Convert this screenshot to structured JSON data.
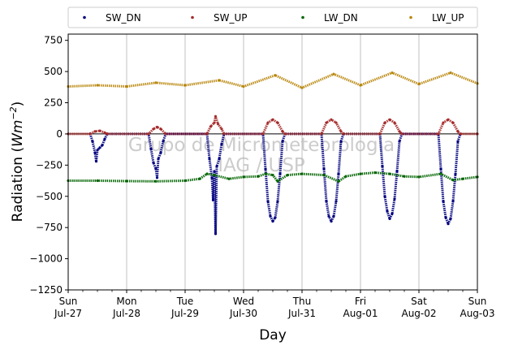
{
  "chart_data": {
    "type": "scatter",
    "ylabel_main": "Radiation (",
    "ylabel_unit_base": "Wm",
    "ylabel_unit_exp": "−2",
    "ylabel_close": ")",
    "xlabel": "Day",
    "ylim": [
      -1250,
      800
    ],
    "xlim": [
      "2014-07-27",
      "2014-08-03"
    ],
    "yticks": [
      {
        "value": 750,
        "label": "750"
      },
      {
        "value": 500,
        "label": "500"
      },
      {
        "value": 250,
        "label": "250"
      },
      {
        "value": 0,
        "label": "0"
      },
      {
        "value": -250,
        "label": "−250"
      },
      {
        "value": -500,
        "label": "−500"
      },
      {
        "value": -750,
        "label": "−750"
      },
      {
        "value": -1000,
        "label": "−1000"
      },
      {
        "value": -1250,
        "label": "−1250"
      }
    ],
    "xticks": [
      {
        "date": "2014-07-27",
        "day": "Sun",
        "date_label": "Jul-27"
      },
      {
        "date": "2014-07-28",
        "day": "Mon",
        "date_label": "Jul-28"
      },
      {
        "date": "2014-07-29",
        "day": "Tue",
        "date_label": "Jul-29"
      },
      {
        "date": "2014-07-30",
        "day": "Wed",
        "date_label": "Jul-30"
      },
      {
        "date": "2014-07-31",
        "day": "Thu",
        "date_label": "Jul-31"
      },
      {
        "date": "2014-08-01",
        "day": "Fri",
        "date_label": "Aug-01"
      },
      {
        "date": "2014-08-02",
        "day": "Sat",
        "date_label": "Aug-02"
      },
      {
        "date": "2014-08-03",
        "day": "Sun",
        "date_label": "Aug-03"
      }
    ],
    "grid": "vertical",
    "legend_placement": "top",
    "watermark": [
      "Grupo de Micrometeorologia",
      "IAG / USP"
    ],
    "series": [
      {
        "name": "SW_DN",
        "color": "#00007f",
        "points": [
          [
            "2014-07-27T09:00",
            0
          ],
          [
            "2014-07-27T10:00",
            -60
          ],
          [
            "2014-07-27T11:00",
            -150
          ],
          [
            "2014-07-27T11:30",
            -220
          ],
          [
            "2014-07-27T12:00",
            -130
          ],
          [
            "2014-07-27T13:00",
            -110
          ],
          [
            "2014-07-27T14:00",
            -90
          ],
          [
            "2014-07-27T15:00",
            -40
          ],
          [
            "2014-07-27T16:00",
            0
          ],
          [
            "2014-07-28T09:00",
            0
          ],
          [
            "2014-07-28T10:00",
            -120
          ],
          [
            "2014-07-28T11:00",
            -230
          ],
          [
            "2014-07-28T12:00",
            -280
          ],
          [
            "2014-07-28T12:30",
            -350
          ],
          [
            "2014-07-28T13:00",
            -200
          ],
          [
            "2014-07-28T14:00",
            -150
          ],
          [
            "2014-07-28T15:00",
            -60
          ],
          [
            "2014-07-28T16:00",
            0
          ],
          [
            "2014-07-29T09:00",
            0
          ],
          [
            "2014-07-29T10:00",
            -200
          ],
          [
            "2014-07-29T11:00",
            -350
          ],
          [
            "2014-07-29T11:30",
            -530
          ],
          [
            "2014-07-29T12:00",
            -300
          ],
          [
            "2014-07-29T12:30",
            -800
          ],
          [
            "2014-07-29T13:00",
            -260
          ],
          [
            "2014-07-29T14:00",
            -200
          ],
          [
            "2014-07-29T15:00",
            -80
          ],
          [
            "2014-07-29T16:00",
            0
          ],
          [
            "2014-07-30T08:00",
            0
          ],
          [
            "2014-07-30T09:00",
            -280
          ],
          [
            "2014-07-30T10:00",
            -540
          ],
          [
            "2014-07-30T11:00",
            -660
          ],
          [
            "2014-07-30T12:00",
            -700
          ],
          [
            "2014-07-30T13:00",
            -670
          ],
          [
            "2014-07-30T14:00",
            -540
          ],
          [
            "2014-07-30T15:00",
            -320
          ],
          [
            "2014-07-30T16:00",
            -60
          ],
          [
            "2014-07-30T17:00",
            0
          ],
          [
            "2014-07-31T08:00",
            0
          ],
          [
            "2014-07-31T09:00",
            -280
          ],
          [
            "2014-07-31T10:00",
            -540
          ],
          [
            "2014-07-31T11:00",
            -660
          ],
          [
            "2014-07-31T12:00",
            -700
          ],
          [
            "2014-07-31T13:00",
            -660
          ],
          [
            "2014-07-31T14:00",
            -540
          ],
          [
            "2014-07-31T15:00",
            -320
          ],
          [
            "2014-07-31T16:00",
            -60
          ],
          [
            "2014-07-31T17:00",
            0
          ],
          [
            "2014-08-01T08:00",
            0
          ],
          [
            "2014-08-01T09:00",
            -260
          ],
          [
            "2014-08-01T10:00",
            -500
          ],
          [
            "2014-08-01T11:00",
            -620
          ],
          [
            "2014-08-01T12:00",
            -680
          ],
          [
            "2014-08-01T13:00",
            -640
          ],
          [
            "2014-08-01T14:00",
            -520
          ],
          [
            "2014-08-01T15:00",
            -300
          ],
          [
            "2014-08-01T16:00",
            -60
          ],
          [
            "2014-08-01T17:00",
            0
          ],
          [
            "2014-08-02T08:00",
            0
          ],
          [
            "2014-08-02T09:00",
            -280
          ],
          [
            "2014-08-02T10:00",
            -540
          ],
          [
            "2014-08-02T11:00",
            -670
          ],
          [
            "2014-08-02T12:00",
            -720
          ],
          [
            "2014-08-02T13:00",
            -680
          ],
          [
            "2014-08-02T14:00",
            -540
          ],
          [
            "2014-08-02T15:00",
            -320
          ],
          [
            "2014-08-02T16:00",
            -60
          ],
          [
            "2014-08-02T17:00",
            0
          ]
        ]
      },
      {
        "name": "SW_UP",
        "color": "#a52a2a",
        "points": [
          [
            "2014-07-27T00:00",
            0
          ],
          [
            "2014-07-27T09:00",
            0
          ],
          [
            "2014-07-27T11:00",
            20
          ],
          [
            "2014-07-27T13:00",
            25
          ],
          [
            "2014-07-27T15:00",
            10
          ],
          [
            "2014-07-27T16:00",
            0
          ],
          [
            "2014-07-28T09:00",
            0
          ],
          [
            "2014-07-28T11:00",
            40
          ],
          [
            "2014-07-28T12:30",
            55
          ],
          [
            "2014-07-28T14:00",
            40
          ],
          [
            "2014-07-28T16:00",
            0
          ],
          [
            "2014-07-29T09:00",
            0
          ],
          [
            "2014-07-29T10:30",
            60
          ],
          [
            "2014-07-29T12:00",
            90
          ],
          [
            "2014-07-29T12:30",
            140
          ],
          [
            "2014-07-29T13:30",
            80
          ],
          [
            "2014-07-29T15:00",
            40
          ],
          [
            "2014-07-29T16:00",
            0
          ],
          [
            "2014-07-30T08:00",
            0
          ],
          [
            "2014-07-30T10:00",
            90
          ],
          [
            "2014-07-30T12:00",
            115
          ],
          [
            "2014-07-30T14:00",
            90
          ],
          [
            "2014-07-30T16:00",
            20
          ],
          [
            "2014-07-30T17:00",
            0
          ],
          [
            "2014-07-31T08:00",
            0
          ],
          [
            "2014-07-31T10:00",
            90
          ],
          [
            "2014-07-31T12:00",
            115
          ],
          [
            "2014-07-31T14:00",
            90
          ],
          [
            "2014-07-31T16:00",
            20
          ],
          [
            "2014-07-31T17:00",
            0
          ],
          [
            "2014-08-01T08:00",
            0
          ],
          [
            "2014-08-01T10:00",
            90
          ],
          [
            "2014-08-01T12:00",
            115
          ],
          [
            "2014-08-01T14:00",
            90
          ],
          [
            "2014-08-01T16:00",
            20
          ],
          [
            "2014-08-01T17:00",
            0
          ],
          [
            "2014-08-02T08:00",
            0
          ],
          [
            "2014-08-02T10:00",
            90
          ],
          [
            "2014-08-02T12:00",
            115
          ],
          [
            "2014-08-02T14:00",
            90
          ],
          [
            "2014-08-02T16:00",
            20
          ],
          [
            "2014-08-02T17:00",
            0
          ],
          [
            "2014-08-03T00:00",
            0
          ]
        ]
      },
      {
        "name": "LW_DN",
        "color": "#006400",
        "points": [
          [
            "2014-07-27T00:00",
            -375
          ],
          [
            "2014-07-27T12:00",
            -375
          ],
          [
            "2014-07-28T00:00",
            -378
          ],
          [
            "2014-07-28T12:00",
            -380
          ],
          [
            "2014-07-29T00:00",
            -375
          ],
          [
            "2014-07-29T06:00",
            -360
          ],
          [
            "2014-07-29T09:00",
            -320
          ],
          [
            "2014-07-29T12:00",
            -330
          ],
          [
            "2014-07-29T18:00",
            -360
          ],
          [
            "2014-07-30T00:00",
            -345
          ],
          [
            "2014-07-30T06:00",
            -340
          ],
          [
            "2014-07-30T09:00",
            -320
          ],
          [
            "2014-07-30T12:00",
            -330
          ],
          [
            "2014-07-30T14:00",
            -380
          ],
          [
            "2014-07-30T18:00",
            -330
          ],
          [
            "2014-07-31T00:00",
            -320
          ],
          [
            "2014-07-31T09:00",
            -330
          ],
          [
            "2014-07-31T15:00",
            -380
          ],
          [
            "2014-07-31T18:00",
            -340
          ],
          [
            "2014-08-01T00:00",
            -320
          ],
          [
            "2014-08-01T06:00",
            -310
          ],
          [
            "2014-08-01T12:00",
            -320
          ],
          [
            "2014-08-01T18:00",
            -340
          ],
          [
            "2014-08-02T00:00",
            -345
          ],
          [
            "2014-08-02T09:00",
            -320
          ],
          [
            "2014-08-02T14:00",
            -370
          ],
          [
            "2014-08-02T18:00",
            -360
          ],
          [
            "2014-08-03T00:00",
            -345
          ]
        ]
      },
      {
        "name": "LW_UP",
        "color": "#b8860b",
        "points": [
          [
            "2014-07-27T00:00",
            380
          ],
          [
            "2014-07-27T12:00",
            390
          ],
          [
            "2014-07-28T00:00",
            380
          ],
          [
            "2014-07-28T12:00",
            410
          ],
          [
            "2014-07-29T00:00",
            390
          ],
          [
            "2014-07-29T14:00",
            430
          ],
          [
            "2014-07-30T00:00",
            380
          ],
          [
            "2014-07-30T13:00",
            470
          ],
          [
            "2014-07-31T00:00",
            370
          ],
          [
            "2014-07-31T13:00",
            480
          ],
          [
            "2014-08-01T00:00",
            390
          ],
          [
            "2014-08-01T13:00",
            490
          ],
          [
            "2014-08-02T00:00",
            400
          ],
          [
            "2014-08-02T13:00",
            490
          ],
          [
            "2014-08-03T00:00",
            405
          ]
        ]
      }
    ]
  }
}
